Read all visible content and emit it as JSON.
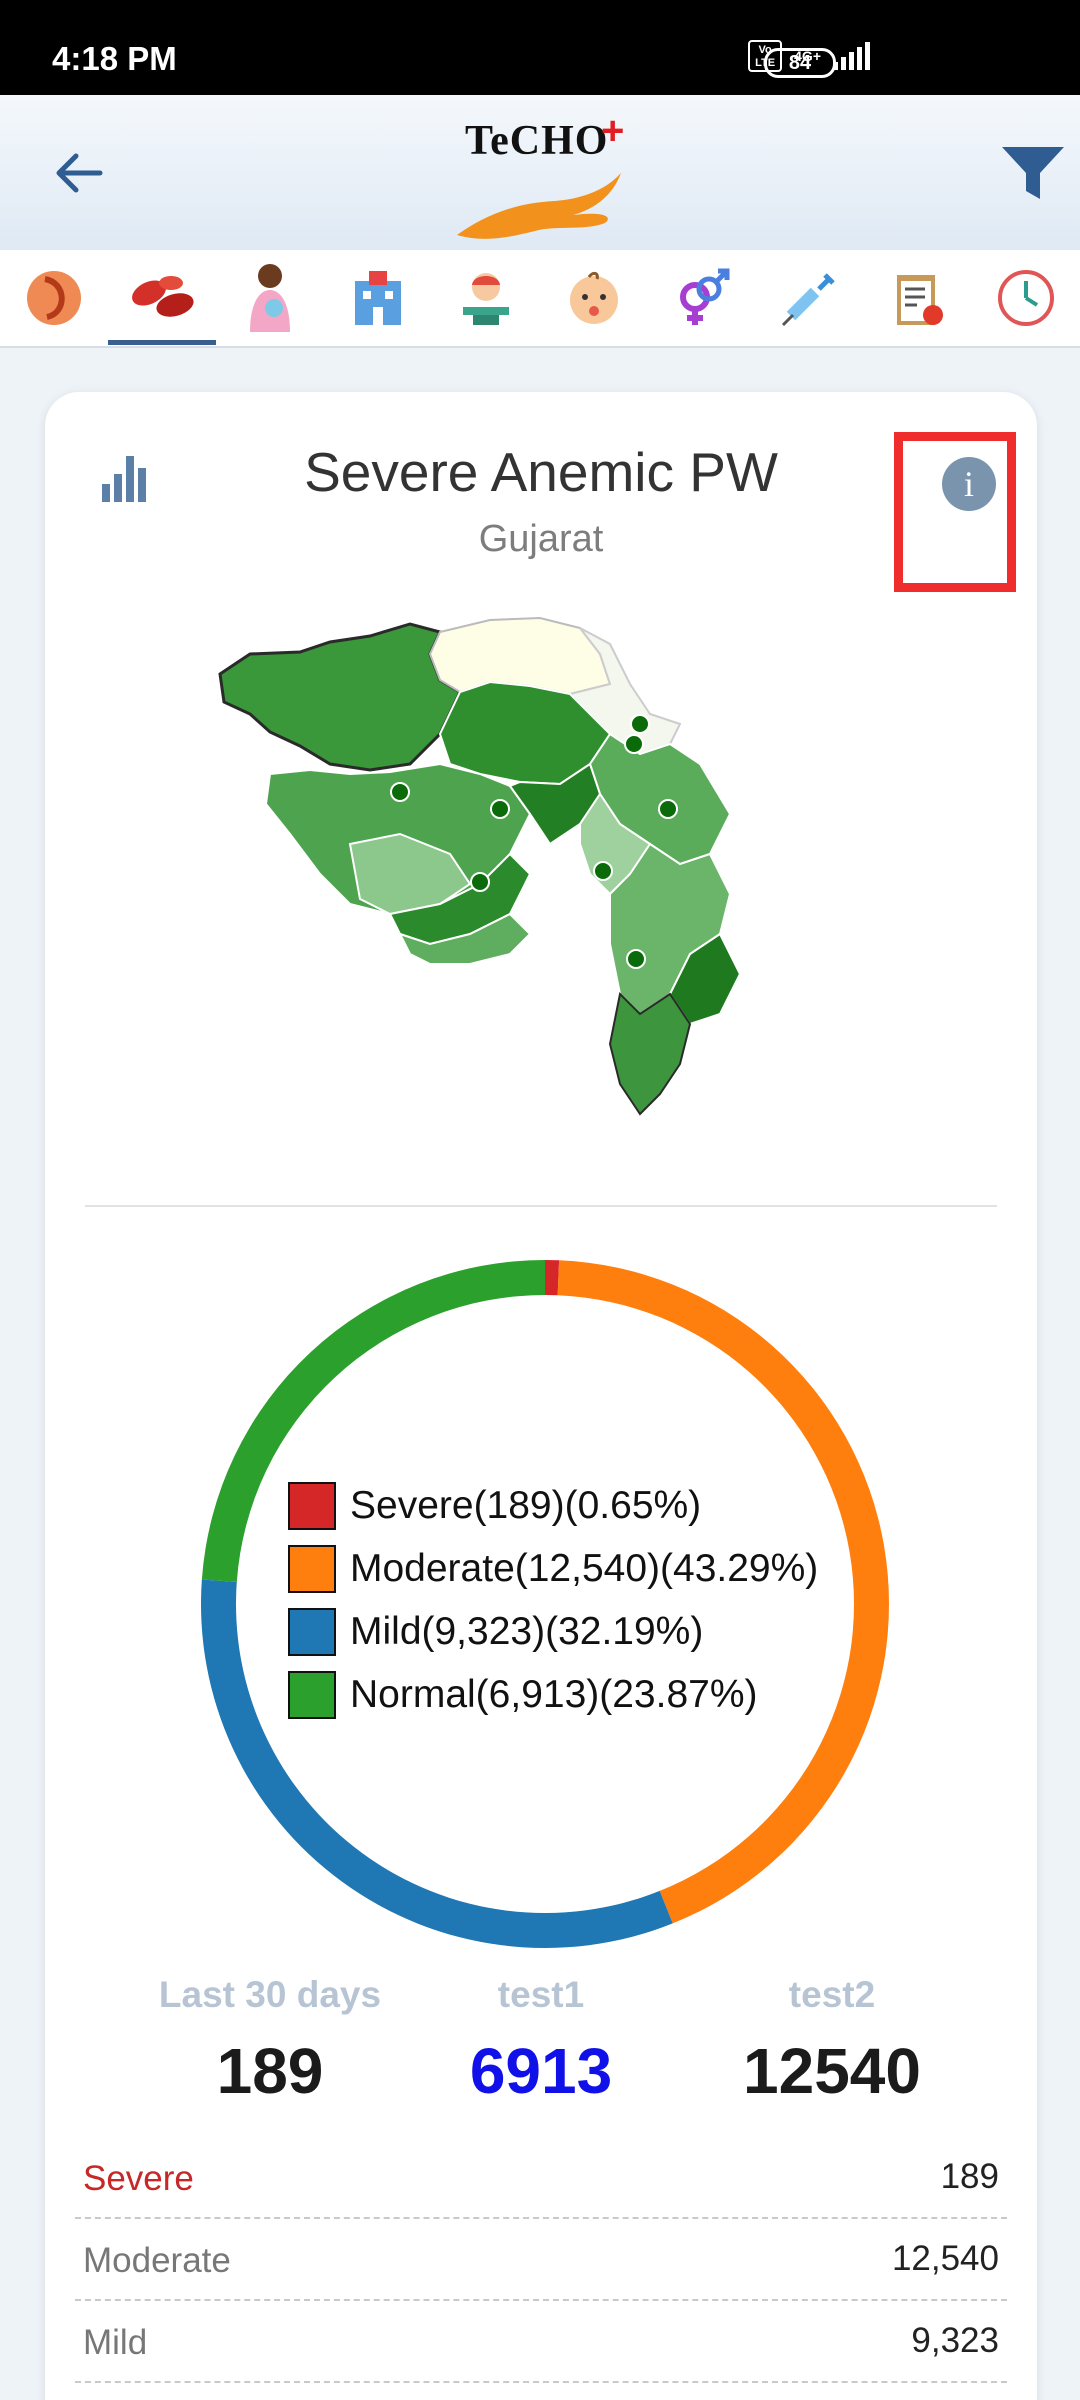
{
  "status_bar": {
    "time": "4:18 PM",
    "volte_label": "Vo LTE",
    "network_label": "4G+",
    "battery": "84"
  },
  "header": {
    "logo_text": "TeCHO",
    "logo_plus": "+"
  },
  "tabs": [
    {
      "icon": "pregnancy-icon"
    },
    {
      "icon": "blood-cells-icon",
      "selected": true
    },
    {
      "icon": "mother-baby-icon"
    },
    {
      "icon": "hospital-icon"
    },
    {
      "icon": "infant-weighing-icon"
    },
    {
      "icon": "baby-face-icon"
    },
    {
      "icon": "gender-icon"
    },
    {
      "icon": "syringe-icon"
    },
    {
      "icon": "clipboard-nutrition-icon"
    },
    {
      "icon": "growth-clock-icon"
    }
  ],
  "card": {
    "title": "Severe Anemic PW",
    "subtitle": "Gujarat",
    "info_label": "i"
  },
  "chart_data": {
    "type": "pie",
    "categories": [
      "Severe",
      "Moderate",
      "Mild",
      "Normal"
    ],
    "values": [
      189,
      12540,
      9323,
      6913
    ],
    "percentages": [
      0.65,
      43.29,
      32.19,
      23.87
    ],
    "colors": [
      "#d62728",
      "#ff7f0e",
      "#1f77b4",
      "#2ca02c"
    ],
    "legend": [
      "Severe(189)(0.65%)",
      "Moderate(12,540)(43.29%)",
      "Mild(9,323)(32.19%)",
      "Normal(6,913)(23.87%)"
    ],
    "legend_placement": "center"
  },
  "stats": [
    {
      "label": "Last 30 days",
      "value": "189",
      "color": "#1b1b1b"
    },
    {
      "label": "test1",
      "value": "6913",
      "color": "#1010e8"
    },
    {
      "label": "test2",
      "value": "12540",
      "color": "#1b1b1b"
    }
  ],
  "table": [
    {
      "label": "Severe",
      "value": "189",
      "label_color": "#c62828"
    },
    {
      "label": "Moderate",
      "value": "12,540"
    },
    {
      "label": "Mild",
      "value": "9,323"
    }
  ]
}
